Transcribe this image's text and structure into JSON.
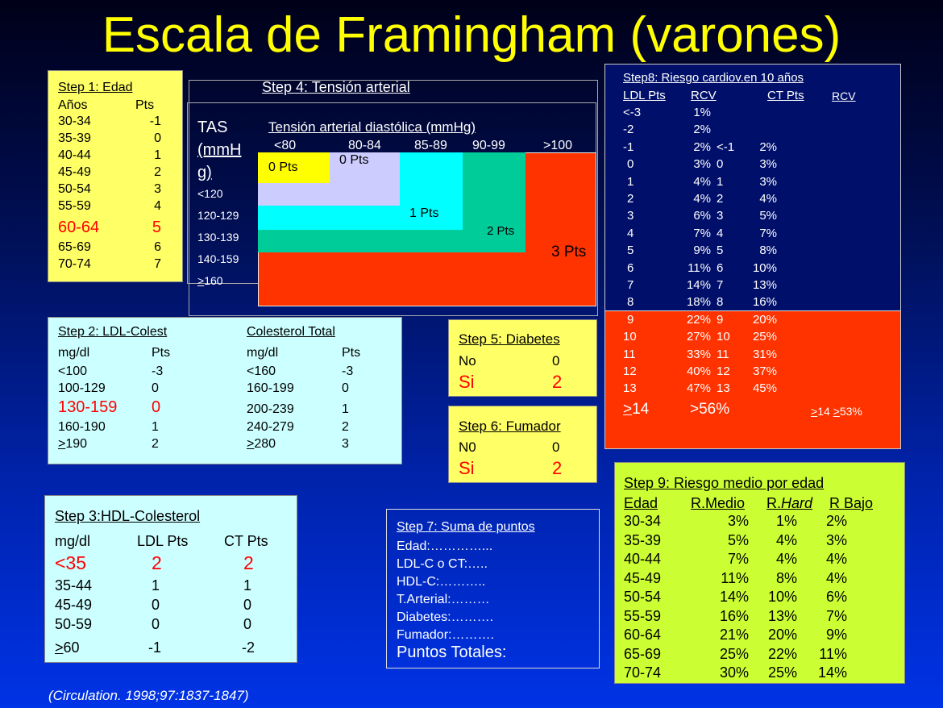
{
  "title": "Escala de Framingham (varones)",
  "step1": {
    "header": "Step 1: Edad",
    "col_age": "Años",
    "col_pts": "Pts",
    "rows": [
      {
        "age": "30-34",
        "pts": "-1"
      },
      {
        "age": "35-39",
        "pts": "0"
      },
      {
        "age": "40-44",
        "pts": "1"
      },
      {
        "age": "45-49",
        "pts": "2"
      },
      {
        "age": "50-54",
        "pts": "3"
      },
      {
        "age": "55-59",
        "pts": "4"
      },
      {
        "age": "60-64",
        "pts": "5"
      },
      {
        "age": "65-69",
        "pts": "6"
      },
      {
        "age": "70-74",
        "pts": "7"
      }
    ]
  },
  "step4": {
    "header": "Step 4: Tensión arterial",
    "tas_line1": "TAS",
    "tas_line2": "(mmH",
    "tas_line3": "g)",
    "diastolic_label": "Tensión arterial diastólica (mmHg)",
    "cols": [
      "<80",
      "80-84",
      "85-89",
      "90-99",
      ">100"
    ],
    "rows": [
      "<120",
      "120-129",
      "130-139",
      "140-159",
      ">160"
    ],
    "pts_0a": "0 Pts",
    "pts_0b": "0 Pts",
    "pts_1": "1 Pts",
    "pts_2": "2 Pts",
    "pts_3": "3 Pts",
    "colors": {
      "c0a": "#ffff00",
      "c0b": "#ccccff",
      "c1": "#00ffff",
      "c2": "#00cc99",
      "c3": "#ff3300"
    }
  },
  "step8": {
    "header": "Step8: Riesgo cardiov.en 10 años",
    "h_ldl": "LDL Pts",
    "h_rcv": "RCV",
    "h_ct": "CT Pts",
    "h_rcv2": "RCV",
    "rows": [
      {
        "ldl": "<-3",
        "rcv": "1%",
        "ct": "",
        "rcv2": ""
      },
      {
        "ldl": "-2",
        "rcv": "2%",
        "ct": "",
        "rcv2": ""
      },
      {
        "ldl": "-1",
        "rcv": "2%",
        "ct": "<-1",
        "rcv2": "2%"
      },
      {
        "ldl": "0",
        "rcv": "3%",
        "ct": "0",
        "rcv2": "3%"
      },
      {
        "ldl": "1",
        "rcv": "4%",
        "ct": "1",
        "rcv2": "3%"
      },
      {
        "ldl": "2",
        "rcv": "4%",
        "ct": "2",
        "rcv2": "4%"
      },
      {
        "ldl": "3",
        "rcv": "6%",
        "ct": "3",
        "rcv2": "5%"
      },
      {
        "ldl": "4",
        "rcv": "7%",
        "ct": "4",
        "rcv2": "7%"
      },
      {
        "ldl": "5",
        "rcv": "9%",
        "ct": "5",
        "rcv2": "8%"
      },
      {
        "ldl": "6",
        "rcv": "11%",
        "ct": "6",
        "rcv2": "10%"
      },
      {
        "ldl": "7",
        "rcv": "14%",
        "ct": "7",
        "rcv2": "13%"
      },
      {
        "ldl": "8",
        "rcv": "18%",
        "ct": "8",
        "rcv2": "16%"
      },
      {
        "ldl": "9",
        "rcv": "22%",
        "ct": "9",
        "rcv2": "20%"
      },
      {
        "ldl": "10",
        "rcv": "27%",
        "ct": "10",
        "rcv2": "25%"
      },
      {
        "ldl": "11",
        "rcv": "33%",
        "ct": "11",
        "rcv2": "31%"
      },
      {
        "ldl": "12",
        "rcv": "40%",
        "ct": "12",
        "rcv2": "37%"
      },
      {
        "ldl": "13",
        "rcv": "47%",
        "ct": "13",
        "rcv2": "45%"
      }
    ],
    "last_ldl_sym": ">",
    "last_ldl": "14",
    "last_rcv": ">56%",
    "last_ct_sym": ">",
    "last_ct": "14",
    "last_rcv2_sym": ">",
    "last_rcv2": "53%"
  },
  "step2": {
    "header_ldl": "Step 2: LDL-Colest",
    "header_ct": "Colesterol Total",
    "col_mg": "mg/dl",
    "col_pts": "Pts",
    "rows": [
      {
        "ldl": "<100",
        "ldl_pts": "-3",
        "ct": "<160",
        "ct_pts": "-3"
      },
      {
        "ldl": "100-129",
        "ldl_pts": "0",
        "ct": "160-199",
        "ct_pts": "0"
      },
      {
        "ldl": "130-159",
        "ldl_pts": "0",
        "ct": "200-239",
        "ct_pts": "1"
      },
      {
        "ldl": "160-190",
        "ldl_pts": "1",
        "ct": "240-279",
        "ct_pts": "2"
      }
    ],
    "last_ldl_sym": ">",
    "last_ldl": "190",
    "last_ldl_pts": "2",
    "last_ct_sym": ">",
    "last_ct": "280",
    "last_ct_pts": "3"
  },
  "step5": {
    "header": "Step 5: Diabetes",
    "no": "No",
    "no_pts": "0",
    "si": "Si",
    "si_pts": "2"
  },
  "step6": {
    "header": "Step 6: Fumador",
    "no": "N0",
    "no_pts": "0",
    "si": "Si",
    "si_pts": "2"
  },
  "step3": {
    "header": "Step 3:HDL-Colesterol",
    "col_mg": "mg/dl",
    "col_ldl": "LDL Pts",
    "col_ct": "CT Pts",
    "rows": [
      {
        "mg": "<35",
        "ldl": "2",
        "ct": "2"
      },
      {
        "mg": "35-44",
        "ldl": "1",
        "ct": "1"
      },
      {
        "mg": "45-49",
        "ldl": "0",
        "ct": "0"
      },
      {
        "mg": "50-59",
        "ldl": "0",
        "ct": "0"
      }
    ],
    "last_sym": ">",
    "last_mg": "60",
    "last_ldl": "-1",
    "last_ct": "-2"
  },
  "step7": {
    "header": "Step 7: Suma de puntos",
    "lines": [
      "Edad:…………...",
      "LDL-C o CT:…..",
      "HDL-C:………..",
      "T.Arterial:………",
      "Diabetes:……….",
      "Fumador:………."
    ],
    "total": "Puntos Totales:"
  },
  "step9": {
    "header": "Step 9: Riesgo medio por edad",
    "h_edad": "Edad",
    "h_medio": "R.Medio",
    "h_hard_pre": "R.",
    "h_hard": "Hard",
    "h_bajo": "R Bajo",
    "rows": [
      {
        "edad": "30-34",
        "medio": "3%",
        "hard": "1%",
        "bajo": "2%"
      },
      {
        "edad": "35-39",
        "medio": "5%",
        "hard": "4%",
        "bajo": "3%"
      },
      {
        "edad": "40-44",
        "medio": "7%",
        "hard": "4%",
        "bajo": "4%"
      },
      {
        "edad": "45-49",
        "medio": "11%",
        "hard": "8%",
        "bajo": "4%"
      },
      {
        "edad": "50-54",
        "medio": "14%",
        "hard": "10%",
        "bajo": "6%"
      },
      {
        "edad": "55-59",
        "medio": "16%",
        "hard": "13%",
        "bajo": "7%"
      },
      {
        "edad": "60-64",
        "medio": "21%",
        "hard": "20%",
        "bajo": "9%"
      },
      {
        "edad": "65-69",
        "medio": "25%",
        "hard": "22%",
        "bajo": "11%"
      },
      {
        "edad": "70-74",
        "medio": "30%",
        "hard": "25%",
        "bajo": "14%"
      }
    ]
  },
  "citation": "(Circulation. 1998;97:1837-1847)"
}
